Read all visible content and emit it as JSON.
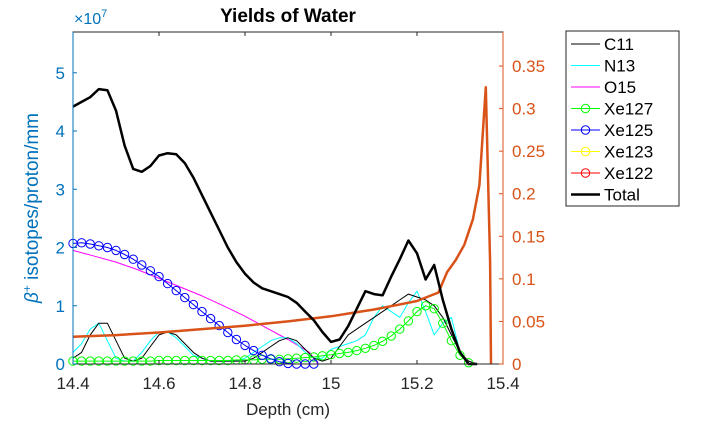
{
  "chart_data": {
    "type": "line",
    "title": "Yields of Water",
    "xlabel": "Depth (cm)",
    "ylabel_left": "β⁺ isotopes/proton/mm",
    "ylabel_left_prefix": "β",
    "ylabel_left_sup": "+",
    "ylabel_left_rest": " isotopes/proton/mm",
    "y_left_exponent_base": "×10",
    "y_left_exponent_power": "7",
    "xlim": [
      14.4,
      15.4
    ],
    "ylim_left": [
      0,
      5.7
    ],
    "ylim_right": [
      0,
      0.39
    ],
    "x_ticks": [
      14.4,
      14.6,
      14.8,
      15,
      15.2,
      15.4
    ],
    "x_tick_labels": [
      "14.4",
      "14.6",
      "14.8",
      "15",
      "15.2",
      "15.4"
    ],
    "y_left_ticks": [
      0,
      1,
      2,
      3,
      4,
      5
    ],
    "y_left_tick_labels": [
      "0",
      "1",
      "2",
      "3",
      "4",
      "5"
    ],
    "y_right_ticks": [
      0,
      0.05,
      0.1,
      0.15,
      0.2,
      0.25,
      0.3,
      0.35
    ],
    "y_right_tick_labels": [
      "0",
      "0.05",
      "0.1",
      "0.15",
      "0.2",
      "0.25",
      "0.3",
      "0.35"
    ],
    "grid": false,
    "legend_position": "outside-top-right",
    "colors": {
      "left_axis": "#0072bd",
      "right_axis": "#d95319",
      "axis": "#262626"
    },
    "series": [
      {
        "name": "C11",
        "axis": "left",
        "color": "#000000",
        "width": 1,
        "marker": "none",
        "x": [
          14.4,
          14.42,
          14.44,
          14.46,
          14.48,
          14.5,
          14.52,
          14.54,
          14.56,
          14.58,
          14.6,
          14.62,
          14.64,
          14.66,
          14.68,
          14.7,
          14.72,
          14.74,
          14.76,
          14.78,
          14.8,
          14.82,
          14.84,
          14.86,
          14.88,
          14.9,
          14.92,
          14.94,
          14.96,
          14.98,
          15,
          15.02,
          15.04,
          15.06,
          15.08,
          15.1,
          15.12,
          15.14,
          15.16,
          15.18,
          15.2,
          15.22,
          15.24,
          15.26,
          15.28,
          15.3,
          15.32,
          15.34,
          15.36
        ],
        "y": [
          0.1,
          0.2,
          0.5,
          0.7,
          0.7,
          0.4,
          0.1,
          0.05,
          0.1,
          0.3,
          0.5,
          0.55,
          0.5,
          0.35,
          0.2,
          0.1,
          0.05,
          0.05,
          0.05,
          0.05,
          0.05,
          0.1,
          0.2,
          0.3,
          0.4,
          0.45,
          0.4,
          0.25,
          0.1,
          0.05,
          0.1,
          0.3,
          0.5,
          0.6,
          0.7,
          0.8,
          0.9,
          1.0,
          1.1,
          1.2,
          1.15,
          1.1,
          1.0,
          0.8,
          0.5,
          0.2,
          0.05,
          0.0,
          0.0
        ]
      },
      {
        "name": "N13",
        "axis": "left",
        "color": "#00ffff",
        "width": 1,
        "marker": "none",
        "x": [
          14.4,
          14.42,
          14.44,
          14.46,
          14.48,
          14.5,
          14.52,
          14.54,
          14.56,
          14.58,
          14.6,
          14.62,
          14.64,
          14.66,
          14.68,
          14.7,
          14.72,
          14.74,
          14.76,
          14.78,
          14.8,
          14.82,
          14.84,
          14.86,
          14.88,
          14.9,
          14.92,
          14.94,
          14.96,
          14.98,
          15,
          15.02,
          15.04,
          15.06,
          15.08,
          15.1,
          15.12,
          15.14,
          15.16,
          15.18,
          15.2,
          15.22,
          15.24,
          15.26,
          15.28,
          15.3,
          15.32
        ],
        "y": [
          0.2,
          0.35,
          0.6,
          0.7,
          0.4,
          0.1,
          0.05,
          0.05,
          0.2,
          0.4,
          0.55,
          0.55,
          0.45,
          0.3,
          0.15,
          0.1,
          0.05,
          0.05,
          0.05,
          0.05,
          0.1,
          0.2,
          0.3,
          0.4,
          0.45,
          0.45,
          0.35,
          0.2,
          0.1,
          0.1,
          0.25,
          0.3,
          0.35,
          0.4,
          0.5,
          0.8,
          1.0,
          0.9,
          0.8,
          1.05,
          1.25,
          0.9,
          0.5,
          0.7,
          0.8,
          0.2,
          0.0
        ]
      },
      {
        "name": "O15",
        "axis": "left",
        "color": "#ff00ff",
        "width": 1,
        "marker": "none",
        "x": [
          14.4,
          14.45,
          14.5,
          14.55,
          14.6,
          14.65,
          14.7,
          14.75,
          14.8,
          14.85,
          14.9,
          14.95,
          14.97
        ],
        "y": [
          1.95,
          1.85,
          1.75,
          1.62,
          1.47,
          1.32,
          1.17,
          1.0,
          0.82,
          0.62,
          0.42,
          0.2,
          0.0
        ]
      },
      {
        "name": "Xe127",
        "axis": "left",
        "color": "#00ff00",
        "width": 1,
        "marker": "circle",
        "x": [
          14.4,
          14.42,
          14.44,
          14.46,
          14.48,
          14.5,
          14.52,
          14.54,
          14.56,
          14.58,
          14.6,
          14.62,
          14.64,
          14.66,
          14.68,
          14.7,
          14.72,
          14.74,
          14.76,
          14.78,
          14.8,
          14.82,
          14.84,
          14.86,
          14.88,
          14.9,
          14.92,
          14.94,
          14.96,
          14.98,
          15,
          15.02,
          15.04,
          15.06,
          15.08,
          15.1,
          15.12,
          15.14,
          15.16,
          15.18,
          15.2,
          15.22,
          15.24,
          15.26,
          15.28,
          15.3,
          15.32
        ],
        "y": [
          0.05,
          0.05,
          0.05,
          0.05,
          0.05,
          0.05,
          0.05,
          0.05,
          0.05,
          0.05,
          0.06,
          0.06,
          0.06,
          0.06,
          0.06,
          0.06,
          0.06,
          0.06,
          0.06,
          0.07,
          0.07,
          0.07,
          0.08,
          0.08,
          0.08,
          0.09,
          0.1,
          0.11,
          0.12,
          0.14,
          0.16,
          0.18,
          0.2,
          0.23,
          0.27,
          0.32,
          0.39,
          0.48,
          0.6,
          0.74,
          0.9,
          1.0,
          0.95,
          0.7,
          0.4,
          0.15,
          0.02
        ]
      },
      {
        "name": "Xe125",
        "axis": "left",
        "color": "#0000ff",
        "width": 1,
        "marker": "circle",
        "x": [
          14.4,
          14.42,
          14.44,
          14.46,
          14.48,
          14.5,
          14.52,
          14.54,
          14.56,
          14.58,
          14.6,
          14.62,
          14.64,
          14.66,
          14.68,
          14.7,
          14.72,
          14.74,
          14.76,
          14.78,
          14.8,
          14.82,
          14.84,
          14.86,
          14.88,
          14.9,
          14.92,
          14.94,
          14.96
        ],
        "y": [
          2.07,
          2.08,
          2.06,
          2.03,
          2.0,
          1.95,
          1.88,
          1.8,
          1.7,
          1.6,
          1.5,
          1.38,
          1.26,
          1.14,
          1.02,
          0.9,
          0.78,
          0.66,
          0.54,
          0.42,
          0.32,
          0.23,
          0.15,
          0.09,
          0.04,
          0.01,
          0.0,
          0.0,
          0.0
        ]
      },
      {
        "name": "Xe123",
        "axis": "left",
        "color": "#ffff00",
        "width": 1,
        "marker": "circle",
        "x": [],
        "y": []
      },
      {
        "name": "Xe122",
        "axis": "left",
        "color": "#ff0000",
        "width": 1,
        "marker": "circle",
        "x": [],
        "y": []
      },
      {
        "name": "Total",
        "axis": "left",
        "color": "#000000",
        "width": 2.5,
        "marker": "none",
        "x": [
          14.4,
          14.42,
          14.44,
          14.46,
          14.48,
          14.5,
          14.52,
          14.54,
          14.56,
          14.58,
          14.6,
          14.62,
          14.64,
          14.66,
          14.68,
          14.7,
          14.72,
          14.74,
          14.76,
          14.78,
          14.8,
          14.82,
          14.84,
          14.86,
          14.88,
          14.9,
          14.92,
          14.94,
          14.96,
          14.98,
          15,
          15.02,
          15.04,
          15.06,
          15.08,
          15.1,
          15.12,
          15.14,
          15.16,
          15.18,
          15.2,
          15.22,
          15.24,
          15.26,
          15.28,
          15.3,
          15.32,
          15.34
        ],
        "y": [
          4.42,
          4.5,
          4.58,
          4.72,
          4.7,
          4.35,
          3.75,
          3.35,
          3.3,
          3.4,
          3.58,
          3.62,
          3.6,
          3.45,
          3.2,
          2.9,
          2.6,
          2.3,
          2.0,
          1.75,
          1.55,
          1.4,
          1.3,
          1.25,
          1.2,
          1.15,
          1.05,
          0.9,
          0.75,
          0.55,
          0.38,
          0.42,
          0.65,
          0.95,
          1.25,
          1.2,
          1.18,
          1.5,
          1.8,
          2.12,
          1.9,
          1.45,
          1.7,
          1.1,
          0.6,
          0.2,
          0.0,
          0.0
        ]
      },
      {
        "name": "",
        "axis": "right",
        "color": "#d95319",
        "width": 2.5,
        "marker": "none",
        "legend": false,
        "x": [
          14.4,
          14.5,
          14.6,
          14.7,
          14.8,
          14.9,
          15.0,
          15.05,
          15.1,
          15.15,
          15.2,
          15.25,
          15.27,
          15.29,
          15.31,
          15.33,
          15.345,
          15.36,
          15.37,
          15.372
        ],
        "y": [
          0.032,
          0.034,
          0.037,
          0.041,
          0.045,
          0.05,
          0.056,
          0.06,
          0.064,
          0.069,
          0.074,
          0.084,
          0.108,
          0.122,
          0.14,
          0.17,
          0.21,
          0.325,
          0.12,
          0.0
        ]
      }
    ]
  }
}
